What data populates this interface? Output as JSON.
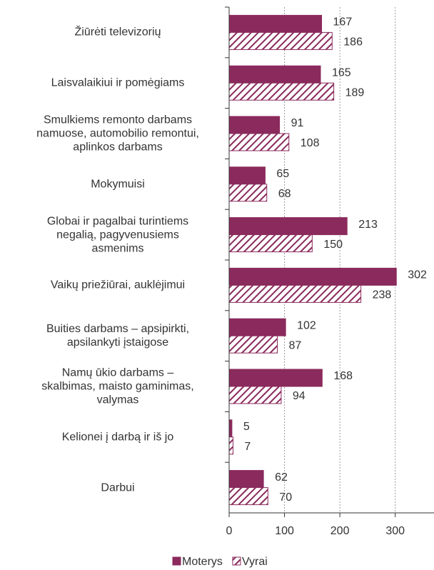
{
  "chart_data": {
    "type": "bar",
    "orientation": "horizontal",
    "categories": [
      "Žiūrėti televizorių",
      "Laisvalaikiui ir pomėgiams",
      "Smulkiems remonto darbams\nnamuose, automobilio remontui,\naplinkos darbams",
      "Mokymuisi",
      "Globai ir pagalbai turintiems\nnegalią, pagyvenusiems\nasmenims",
      "Vaikų priežiūrai, auklėjimui",
      "Buities darbams – apsipirkti,\napsilankyti įstaigose",
      "Namų ūkio darbams –\nskalbimas, maisto gaminimas,\nvalymas",
      "Kelionei į darbą ir iš jo",
      "Darbui"
    ],
    "series": [
      {
        "name": "Moterys",
        "color": "#8b2a5c",
        "pattern": "solid",
        "values": [
          167,
          165,
          91,
          65,
          213,
          302,
          102,
          168,
          5,
          62
        ]
      },
      {
        "name": "Vyrai",
        "color": "#8b2a5c",
        "pattern": "hatch",
        "values": [
          186,
          189,
          108,
          68,
          150,
          238,
          87,
          94,
          7,
          70
        ]
      }
    ],
    "xlim": [
      0,
      370
    ],
    "xticks": [
      0,
      100,
      200,
      300
    ],
    "grid": true,
    "legend": "bottom"
  }
}
